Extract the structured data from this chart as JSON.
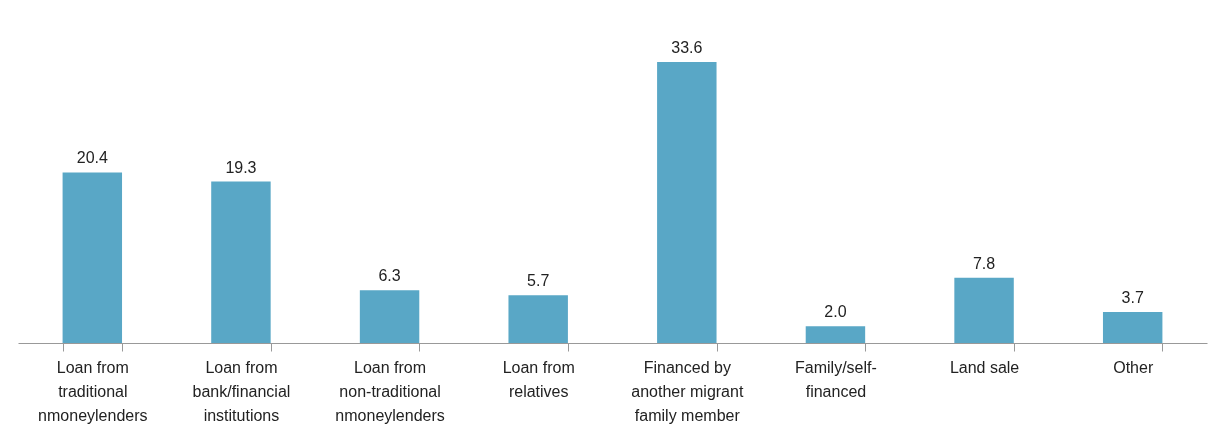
{
  "chart_data": {
    "type": "bar",
    "categories": [
      "Loan from traditional nmoneylenders",
      "Loan from bank/financial institutions",
      "Loan from non-traditional nmoneylenders",
      "Loan from relatives",
      "Financed by another migrant family member",
      "Family/self-financed",
      "Land sale",
      "Other"
    ],
    "values": [
      20.4,
      19.3,
      6.3,
      5.7,
      33.6,
      2.0,
      7.8,
      3.7
    ],
    "value_labels": [
      "20.4",
      "19.3",
      "6.3",
      "5.7",
      "33.6",
      "2.0",
      "7.8",
      "3.7"
    ],
    "color": "#59a7c6",
    "grid": false
  }
}
